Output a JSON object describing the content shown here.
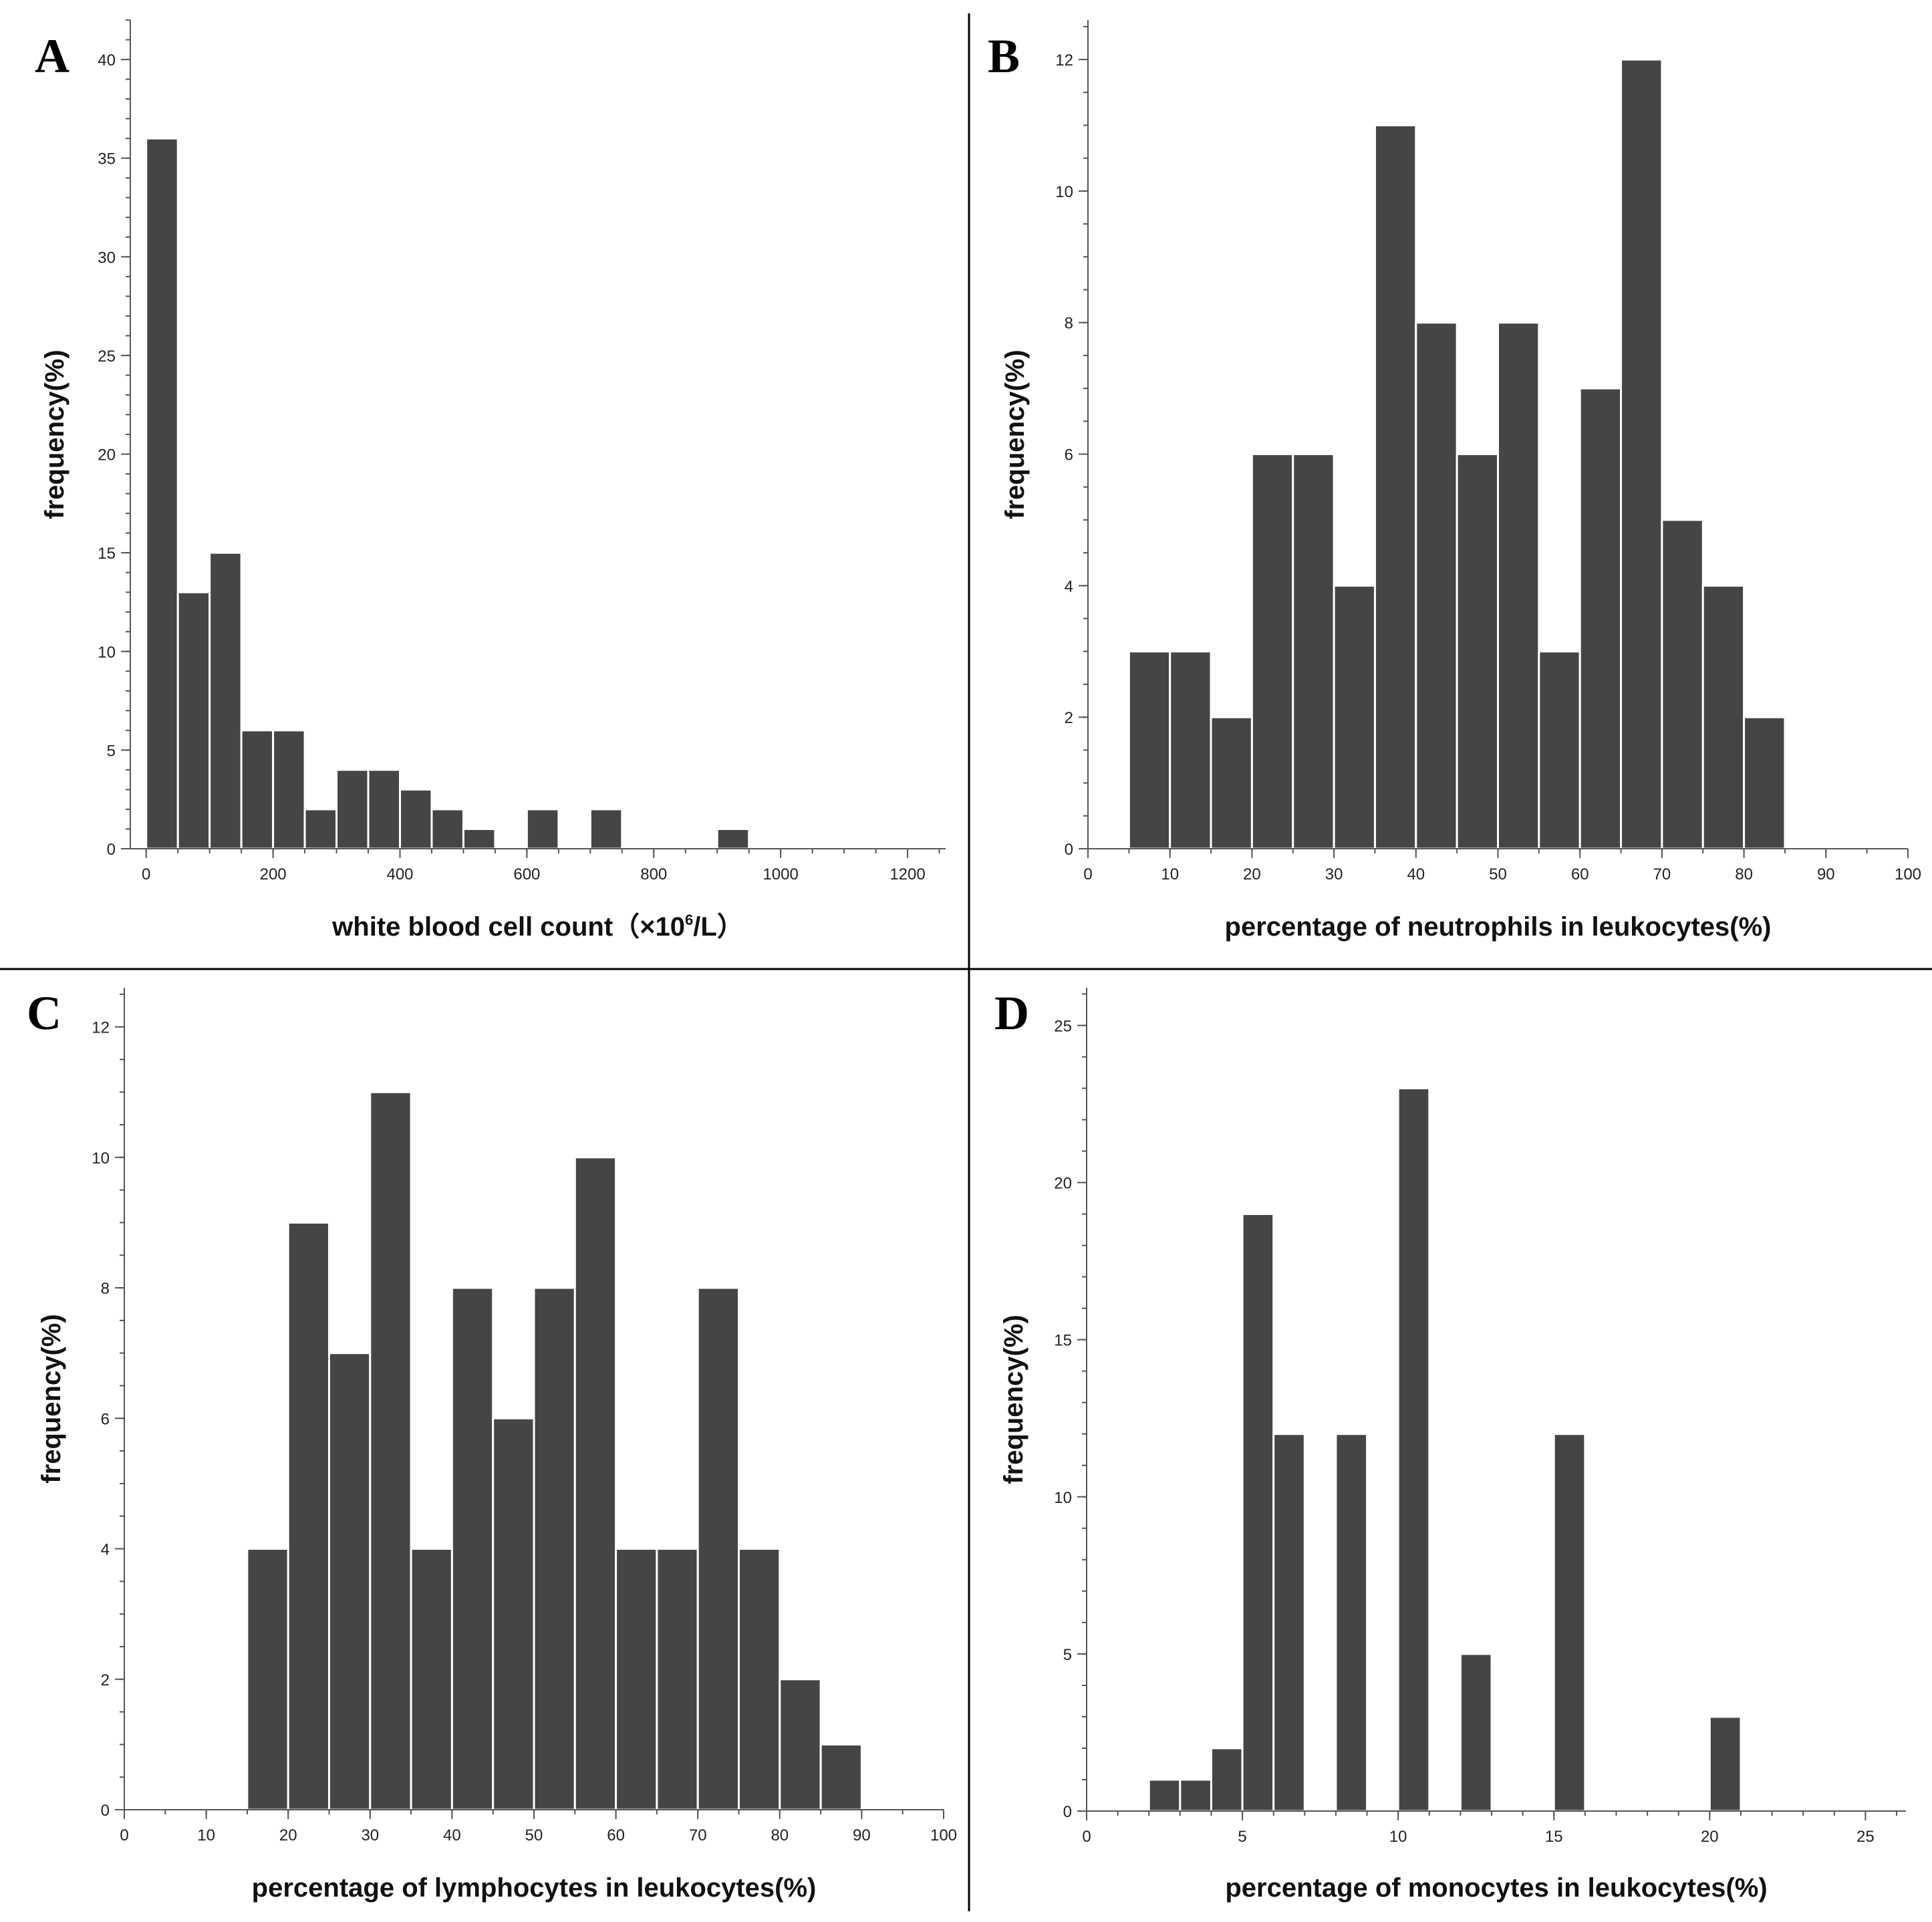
{
  "chart_data": [
    {
      "panel": "A",
      "type": "bar",
      "title": "",
      "xlabel_main": "white blood cell count（×10",
      "xlabel_sup": "6",
      "xlabel_tail": "/L）",
      "ylabel": "frequency(%)",
      "xlim": [
        -25,
        1260
      ],
      "ylim": [
        0,
        42
      ],
      "xticks": [
        0,
        200,
        400,
        600,
        800,
        1000,
        1200
      ],
      "yticks": [
        0,
        5,
        10,
        15,
        20,
        25,
        30,
        35,
        40
      ],
      "xminor": 50,
      "yminor": 1,
      "bin_width": 50,
      "bins": [
        {
          "start": 0,
          "value": 36
        },
        {
          "start": 50,
          "value": 13
        },
        {
          "start": 100,
          "value": 15
        },
        {
          "start": 150,
          "value": 6
        },
        {
          "start": 200,
          "value": 6
        },
        {
          "start": 250,
          "value": 2
        },
        {
          "start": 300,
          "value": 4
        },
        {
          "start": 350,
          "value": 4
        },
        {
          "start": 400,
          "value": 3
        },
        {
          "start": 450,
          "value": 2
        },
        {
          "start": 500,
          "value": 1
        },
        {
          "start": 600,
          "value": 2
        },
        {
          "start": 700,
          "value": 2
        },
        {
          "start": 900,
          "value": 1
        }
      ]
    },
    {
      "panel": "B",
      "type": "bar",
      "title": "",
      "xlabel_main": "percentage of neutrophils in leukocytes(%)",
      "xlabel_sup": "",
      "xlabel_tail": "",
      "ylabel": "frequency(%)",
      "xlim": [
        0,
        100
      ],
      "ylim": [
        0,
        12.6
      ],
      "xticks": [
        0,
        10,
        20,
        30,
        40,
        50,
        60,
        70,
        80,
        90,
        100
      ],
      "yticks": [
        0,
        2,
        4,
        6,
        8,
        10,
        12
      ],
      "xminor": 5,
      "yminor": 0.5,
      "bin_width": 5,
      "bins": [
        {
          "start": 5,
          "value": 3
        },
        {
          "start": 10,
          "value": 3
        },
        {
          "start": 15,
          "value": 2
        },
        {
          "start": 20,
          "value": 6
        },
        {
          "start": 25,
          "value": 6
        },
        {
          "start": 30,
          "value": 4
        },
        {
          "start": 35,
          "value": 11
        },
        {
          "start": 40,
          "value": 8
        },
        {
          "start": 45,
          "value": 6
        },
        {
          "start": 50,
          "value": 8
        },
        {
          "start": 55,
          "value": 3
        },
        {
          "start": 60,
          "value": 7
        },
        {
          "start": 65,
          "value": 12
        },
        {
          "start": 70,
          "value": 5
        },
        {
          "start": 75,
          "value": 4
        },
        {
          "start": 80,
          "value": 2
        }
      ]
    },
    {
      "panel": "C",
      "type": "bar",
      "title": "",
      "xlabel_main": "percentage of lymphocytes in leukocytes(%)",
      "xlabel_sup": "",
      "xlabel_tail": "",
      "ylabel": "frequency(%)",
      "xlim": [
        0,
        100
      ],
      "ylim": [
        0,
        12.6
      ],
      "xticks": [
        0,
        10,
        20,
        30,
        40,
        50,
        60,
        70,
        80,
        90,
        100
      ],
      "yticks": [
        0,
        2,
        4,
        6,
        8,
        10,
        12
      ],
      "xminor": 5,
      "yminor": 0.5,
      "bin_width": 5,
      "bins": [
        {
          "start": 15,
          "value": 4
        },
        {
          "start": 20,
          "value": 9
        },
        {
          "start": 25,
          "value": 7
        },
        {
          "start": 30,
          "value": 11
        },
        {
          "start": 35,
          "value": 4
        },
        {
          "start": 40,
          "value": 8
        },
        {
          "start": 45,
          "value": 6
        },
        {
          "start": 50,
          "value": 8
        },
        {
          "start": 55,
          "value": 10
        },
        {
          "start": 60,
          "value": 4
        },
        {
          "start": 65,
          "value": 4
        },
        {
          "start": 70,
          "value": 8
        },
        {
          "start": 75,
          "value": 4
        },
        {
          "start": 80,
          "value": 2
        },
        {
          "start": 85,
          "value": 1
        }
      ]
    },
    {
      "panel": "D",
      "type": "bar",
      "title": "",
      "xlabel_main": "percentage of monocytes in leukocytes(%)",
      "xlabel_sup": "",
      "xlabel_tail": "",
      "ylabel": "frequency(%)",
      "xlim": [
        0,
        26.3
      ],
      "ylim": [
        0,
        26.2
      ],
      "xticks": [
        0,
        5,
        10,
        15,
        20,
        25
      ],
      "yticks": [
        0,
        5,
        10,
        15,
        20,
        25
      ],
      "xminor": 1,
      "yminor": 1,
      "bin_width": 1,
      "bins": [
        {
          "start": 2,
          "value": 1
        },
        {
          "start": 3,
          "value": 1
        },
        {
          "start": 4,
          "value": 2
        },
        {
          "start": 5,
          "value": 19
        },
        {
          "start": 6,
          "value": 12
        },
        {
          "start": 8,
          "value": 12
        },
        {
          "start": 10,
          "value": 23
        },
        {
          "start": 12,
          "value": 5
        },
        {
          "start": 15,
          "value": 12
        },
        {
          "start": 20,
          "value": 3
        }
      ]
    }
  ]
}
